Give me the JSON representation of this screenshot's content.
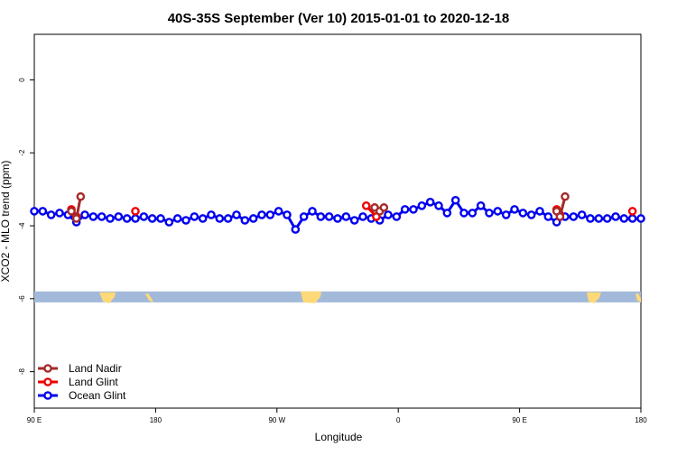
{
  "chart_data": {
    "type": "line",
    "title": "40S-35S September (Ver 10)   2015-01-01 to 2020-12-18",
    "xlabel": "Longitude",
    "ylabel": "XCO2 - MLO trend (ppm)",
    "xlim": [
      90,
      450
    ],
    "ylim": [
      -9,
      1.25
    ],
    "x_ticks": [
      {
        "value": 90,
        "label": "90 E"
      },
      {
        "value": 180,
        "label": "180"
      },
      {
        "value": 270,
        "label": "90 W"
      },
      {
        "value": 360,
        "label": "0"
      },
      {
        "value": 450,
        "label": "90 E"
      },
      {
        "value": 540,
        "label": "180"
      }
    ],
    "y_ticks": [
      {
        "value": 0,
        "label": "0"
      },
      {
        "value": -2,
        "label": "-2"
      },
      {
        "value": -4,
        "label": "-4"
      },
      {
        "value": -6,
        "label": "-6"
      },
      {
        "value": -8,
        "label": "-8"
      }
    ],
    "legend_position": "bottom-left",
    "map_strip": {
      "y_top": -5.8,
      "y_bottom": -6.1,
      "ocean_color": "#a3b9d9",
      "land_color": "#ffd977"
    },
    "series": [
      {
        "name": "Land Nadir",
        "color": "#a52a2a",
        "segments": [
          {
            "x": [
              112,
              115,
              117.5
            ],
            "y": [
              -3.6,
              -3.8,
              -3.2
            ]
          },
          {
            "x": [
              292,
              295,
              297.5
            ],
            "y": [
              -3.5,
              -3.6,
              -3.5
            ]
          },
          {
            "x": [
              400,
              402,
              405
            ],
            "y": [
              -3.6,
              -3.75,
              -3.2
            ]
          }
        ]
      },
      {
        "name": "Land Glint",
        "color": "#ee0000",
        "segments": [
          {
            "x": [
              112,
              115
            ],
            "y": [
              -3.55,
              -3.75
            ]
          },
          {
            "x": [
              150
            ],
            "y": [
              -3.6
            ]
          },
          {
            "x": [
              287,
              293
            ],
            "y": [
              -3.45,
              -3.75
            ]
          },
          {
            "x": [
              400,
              402
            ],
            "y": [
              -3.55,
              -3.7
            ]
          },
          {
            "x": [
              445
            ],
            "y": [
              -3.6
            ]
          }
        ]
      },
      {
        "name": "Ocean Glint",
        "color": "#0000ee",
        "x": [
          90,
          95,
          100,
          105,
          110,
          115,
          120,
          125,
          130,
          135,
          140,
          145,
          150,
          155,
          160,
          165,
          170,
          175,
          180,
          185,
          190,
          195,
          200,
          205,
          210,
          215,
          220,
          225,
          230,
          235,
          240,
          245,
          250,
          255,
          260,
          265,
          270,
          275,
          280,
          285,
          290,
          295,
          300,
          305,
          310,
          315,
          320,
          325,
          330,
          335,
          340,
          345,
          350,
          355,
          360,
          365,
          370,
          375,
          380,
          385,
          390,
          395,
          400,
          405,
          410,
          415,
          420,
          425,
          430,
          435,
          440,
          445,
          450
        ],
        "y": [
          -3.6,
          -3.6,
          -3.7,
          -3.65,
          -3.7,
          -3.9,
          -3.7,
          -3.75,
          -3.75,
          -3.8,
          -3.75,
          -3.8,
          -3.8,
          -3.75,
          -3.8,
          -3.8,
          -3.9,
          -3.8,
          -3.85,
          -3.75,
          -3.8,
          -3.7,
          -3.8,
          -3.8,
          -3.7,
          -3.85,
          -3.8,
          -3.7,
          -3.7,
          -3.6,
          -3.7,
          -4.1,
          -3.75,
          -3.6,
          -3.75,
          -3.75,
          -3.8,
          -3.75,
          -3.85,
          -3.75,
          -3.8,
          -3.85,
          -3.7,
          -3.75,
          -3.55,
          -3.55,
          -3.45,
          -3.35,
          -3.45,
          -3.65,
          -3.3,
          -3.65,
          -3.65,
          -3.45,
          -3.65,
          -3.6,
          -3.7,
          -3.55,
          -3.65,
          -3.7,
          -3.6,
          -3.75,
          -3.9,
          -3.75,
          -3.75,
          -3.7,
          -3.8,
          -3.8,
          -3.8,
          -3.75,
          -3.8,
          -3.8,
          -3.8
        ]
      }
    ]
  }
}
